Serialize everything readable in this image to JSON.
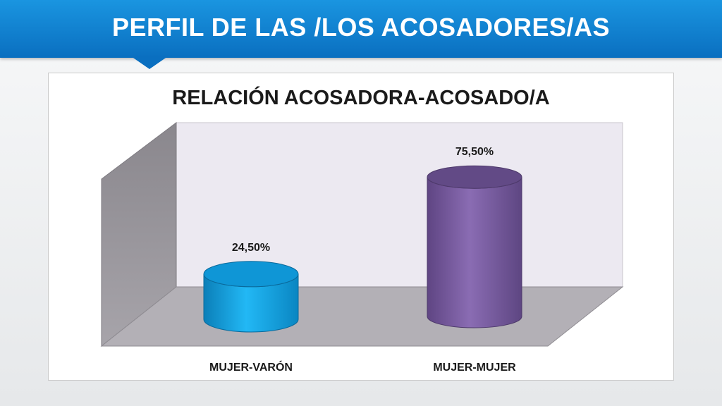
{
  "slide": {
    "title": "PERFIL DE LAS /LOS ACOSADORES/AS"
  },
  "chart_data": {
    "type": "bar",
    "title": "RELACIÓN ACOSADORA-ACOSADO/A",
    "categories": [
      "MUJER-VARÓN",
      "MUJER-MUJER"
    ],
    "values": [
      24.5,
      75.5
    ],
    "data_labels": [
      "24,50%",
      "75,50%"
    ],
    "ylim": [
      0,
      100
    ],
    "grid": false,
    "colors": [
      "#1aa8e6",
      "#7d5fa5"
    ]
  }
}
